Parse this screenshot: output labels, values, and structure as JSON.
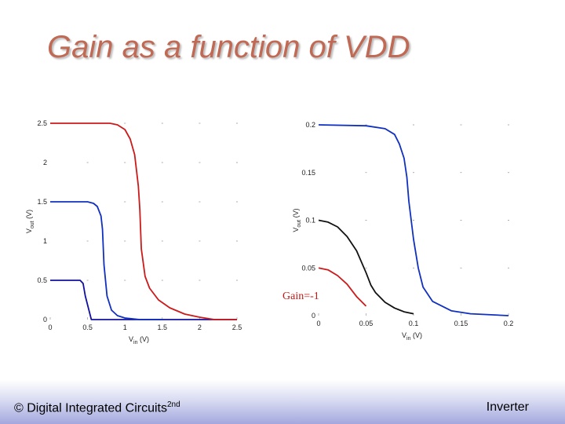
{
  "slide": {
    "title": "Gain as a function of VDD",
    "footer_left": "© Digital Integrated Circuits",
    "footer_left_sup": "2nd",
    "footer_right": "Inverter"
  },
  "annotation": {
    "text": "Gain=-1"
  },
  "chart_data": [
    {
      "type": "line",
      "title": "",
      "xlabel": "Vin (V)",
      "ylabel": "Vout (V)",
      "xlim": [
        0,
        2.5
      ],
      "ylim": [
        0,
        2.5
      ],
      "xticks": [
        "0",
        "0.5",
        "1",
        "1.5",
        "2",
        "2.5"
      ],
      "yticks": [
        "0",
        "0.5",
        "1",
        "1.5",
        "2",
        "2.5"
      ],
      "grid": false,
      "legend": "none",
      "series": [
        {
          "color": "#1010a0",
          "x": [
            0,
            0.4,
            0.44,
            0.47,
            0.55,
            2.5
          ],
          "y": [
            0.5,
            0.5,
            0.46,
            0.3,
            0.0,
            0.0
          ]
        },
        {
          "color": "#1030c0",
          "x": [
            0,
            0.5,
            0.58,
            0.63,
            0.68,
            0.7,
            0.72,
            0.76,
            0.82,
            0.9,
            1.0,
            1.2,
            1.5
          ],
          "y": [
            1.5,
            1.5,
            1.48,
            1.44,
            1.32,
            1.15,
            0.7,
            0.3,
            0.12,
            0.05,
            0.02,
            0.0,
            0.0
          ]
        },
        {
          "color": "#cc1a1a",
          "x": [
            0,
            0.8,
            0.9,
            1.0,
            1.07,
            1.13,
            1.18,
            1.2,
            1.22,
            1.27,
            1.33,
            1.45,
            1.6,
            1.8,
            2.0,
            2.2,
            2.5
          ],
          "y": [
            2.5,
            2.5,
            2.48,
            2.42,
            2.3,
            2.1,
            1.7,
            1.4,
            0.9,
            0.55,
            0.4,
            0.25,
            0.15,
            0.07,
            0.03,
            0.0,
            0.0
          ]
        }
      ]
    },
    {
      "type": "line",
      "title": "",
      "xlabel": "Vin (V)",
      "ylabel": "Vout (V)",
      "xlim": [
        0,
        0.2
      ],
      "ylim": [
        0,
        0.2
      ],
      "xticks": [
        "0",
        "0.05",
        "0.1",
        "0.15",
        "0.2"
      ],
      "yticks": [
        "0",
        "0.05",
        "0.1",
        "0.15",
        "0.2"
      ],
      "grid": false,
      "legend": "none",
      "series": [
        {
          "color": "#cc1a1a",
          "x": [
            0,
            0.01,
            0.02,
            0.03,
            0.04,
            0.05
          ],
          "y": [
            0.05,
            0.048,
            0.042,
            0.033,
            0.02,
            0.01
          ]
        },
        {
          "color": "#111111",
          "x": [
            0,
            0.01,
            0.02,
            0.03,
            0.04,
            0.05,
            0.055,
            0.06,
            0.07,
            0.08,
            0.09,
            0.1
          ],
          "y": [
            0.1,
            0.098,
            0.093,
            0.083,
            0.068,
            0.045,
            0.032,
            0.024,
            0.014,
            0.008,
            0.004,
            0.002
          ]
        },
        {
          "color": "#1030c0",
          "x": [
            0,
            0.05,
            0.07,
            0.08,
            0.085,
            0.09,
            0.093,
            0.095,
            0.1,
            0.105,
            0.11,
            0.12,
            0.14,
            0.16,
            0.2
          ],
          "y": [
            0.2,
            0.199,
            0.196,
            0.19,
            0.18,
            0.165,
            0.145,
            0.12,
            0.08,
            0.05,
            0.03,
            0.015,
            0.005,
            0.002,
            0.0
          ]
        }
      ]
    }
  ]
}
